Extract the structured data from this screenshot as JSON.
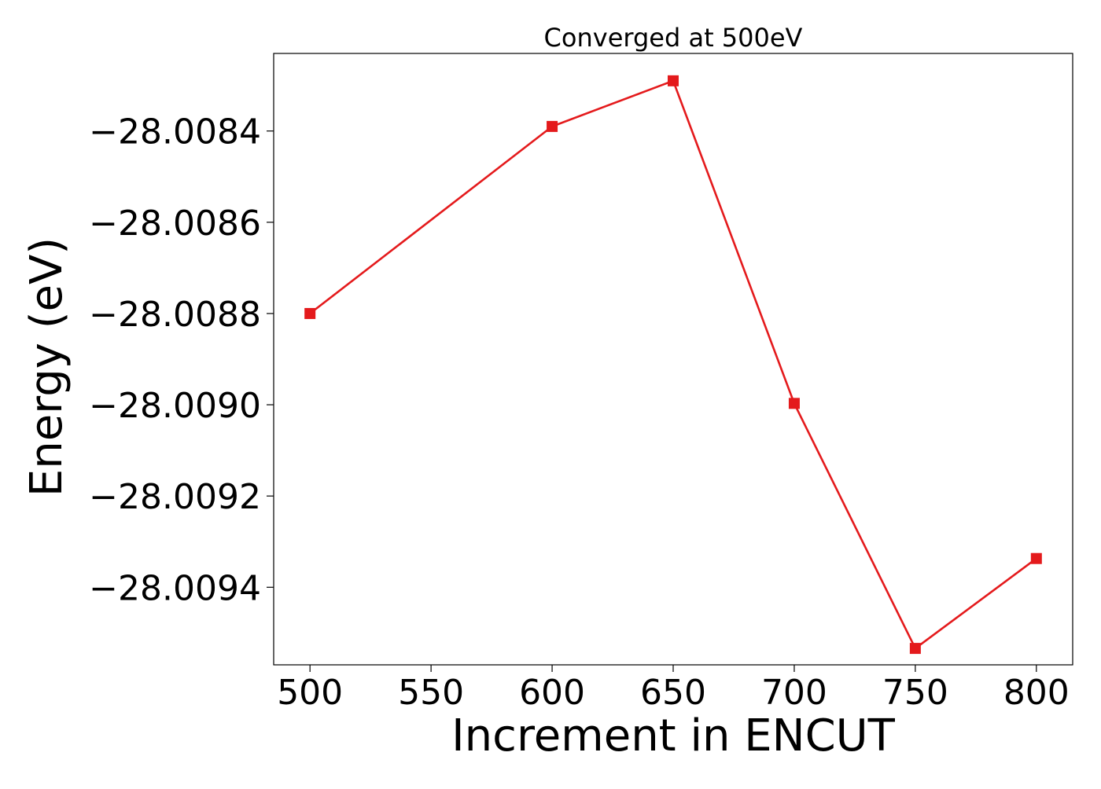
{
  "chart_data": {
    "type": "line",
    "title": "Converged at 500eV",
    "xlabel": "Increment in ENCUT",
    "ylabel": "Energy (eV)",
    "x": [
      500,
      600,
      650,
      700,
      750,
      800
    ],
    "series": [
      {
        "values": [
          -28.0088,
          -28.00839,
          -28.00829,
          -28.008997,
          -28.009534,
          -28.009337
        ],
        "color": "#e41a1c",
        "marker": "square"
      }
    ],
    "xlim": [
      485,
      815
    ],
    "ylim": [
      -28.00957,
      -28.00823
    ],
    "xticks": [
      500,
      550,
      600,
      650,
      700,
      750,
      800
    ],
    "xtick_labels": [
      "500",
      "550",
      "600",
      "650",
      "700",
      "750",
      "800"
    ],
    "yticks": [
      -28.0084,
      -28.0086,
      -28.0088,
      -28.009,
      -28.0092,
      -28.0094
    ],
    "ytick_labels": [
      "−28.0084",
      "−28.0086",
      "−28.0088",
      "−28.0090",
      "−28.0092",
      "−28.0094"
    ],
    "grid": false,
    "legend": "none"
  }
}
